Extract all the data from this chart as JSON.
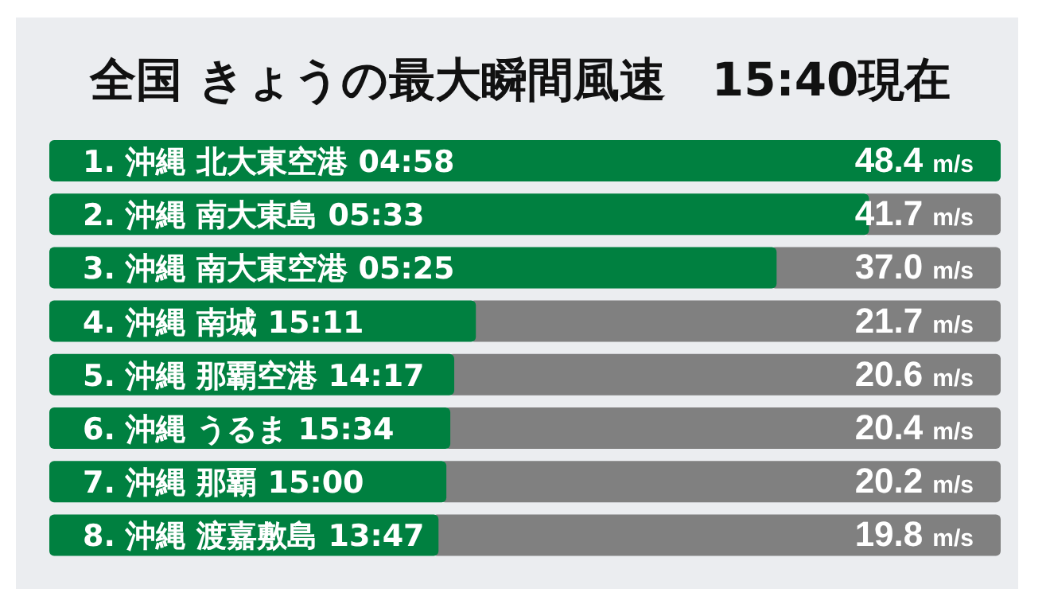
{
  "chart_data": {
    "type": "bar",
    "orientation": "horizontal",
    "title": "全国 きょうの最大瞬間風速　15:40現在",
    "categories": [
      "1. 沖縄 北大東空港 04:58",
      "2. 沖縄 南大東島 05:33",
      "3. 沖縄 南大東空港 05:25",
      "4. 沖縄 南城 15:11",
      "5. 沖縄 那覇空港 14:17",
      "6. 沖縄 うるま 15:34",
      "7. 沖縄 那覇 15:00",
      "8. 沖縄 渡嘉敷島 13:47"
    ],
    "values": [
      48.4,
      41.7,
      37.0,
      21.7,
      20.6,
      20.4,
      20.2,
      19.8
    ],
    "value_labels": [
      "48.4 m/s",
      "41.7 m/s",
      "37.0 m/s",
      "21.7 m/s",
      "20.6 m/s",
      "20.4 m/s",
      "20.2 m/s",
      "19.8 m/s"
    ],
    "color": "#008040",
    "xlim": [
      0,
      48.4
    ]
  }
}
